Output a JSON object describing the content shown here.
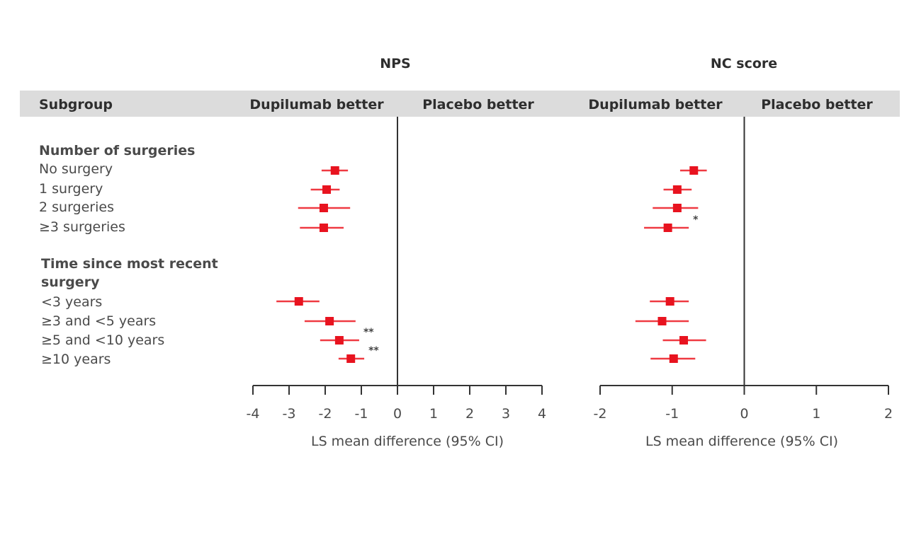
{
  "header": {
    "subgroup_label": "Subgroup"
  },
  "groups": [
    {
      "title": "Number of surgeries",
      "rows": [
        "No surgery",
        "1 surgery",
        "2 surgeries",
        "≥3 surgeries"
      ]
    },
    {
      "title": "Time since most recent surgery",
      "rows": [
        "<3 years",
        "≥3 and <5 years",
        "≥5 and <10 years",
        "≥10 years"
      ]
    }
  ],
  "colors": {
    "marker": "#e8131f",
    "ci": "#ef3a42",
    "axis": "#333333",
    "header_band": "#dcdcdc"
  },
  "chart_data": [
    {
      "type": "forest",
      "title": "NPS",
      "left_label": "Dupilumab better",
      "right_label": "Placebo better",
      "xlabel": "LS mean difference (95% CI)",
      "xlim": [
        -4,
        4
      ],
      "xticks": [
        -4,
        -3,
        -2,
        -1,
        0,
        1,
        2,
        3,
        4
      ],
      "rows": [
        {
          "subgroup": "No surgery",
          "estimate": -1.73,
          "lower": -2.1,
          "upper": -1.37,
          "sig": ""
        },
        {
          "subgroup": "1 surgery",
          "estimate": -1.96,
          "lower": -2.4,
          "upper": -1.6,
          "sig": ""
        },
        {
          "subgroup": "2 surgeries",
          "estimate": -2.04,
          "lower": -2.75,
          "upper": -1.31,
          "sig": ""
        },
        {
          "subgroup": "≥3 surgeries",
          "estimate": -2.04,
          "lower": -2.7,
          "upper": -1.49,
          "sig": ""
        },
        {
          "subgroup": "<3 years",
          "estimate": -2.73,
          "lower": -3.35,
          "upper": -2.16,
          "sig": ""
        },
        {
          "subgroup": "≥3 and <5 years",
          "estimate": -1.88,
          "lower": -2.57,
          "upper": -1.16,
          "sig": ""
        },
        {
          "subgroup": "≥5 and <10 years",
          "estimate": -1.61,
          "lower": -2.14,
          "upper": -1.06,
          "sig": "**"
        },
        {
          "subgroup": "≥10 years",
          "estimate": -1.29,
          "lower": -1.63,
          "upper": -0.92,
          "sig": "**"
        }
      ]
    },
    {
      "type": "forest",
      "title": "NC score",
      "left_label": "Dupilumab better",
      "right_label": "Placebo better",
      "xlabel": "LS mean difference (95% CI)",
      "xlim": [
        -2,
        2
      ],
      "xticks": [
        -2,
        -1,
        0,
        1,
        2
      ],
      "rows": [
        {
          "subgroup": "No surgery",
          "estimate": -0.7,
          "lower": -0.89,
          "upper": -0.52,
          "sig": ""
        },
        {
          "subgroup": "1 surgery",
          "estimate": -0.93,
          "lower": -1.12,
          "upper": -0.73,
          "sig": ""
        },
        {
          "subgroup": "2 surgeries",
          "estimate": -0.93,
          "lower": -1.27,
          "upper": -0.64,
          "sig": ""
        },
        {
          "subgroup": "≥3 surgeries",
          "estimate": -1.06,
          "lower": -1.39,
          "upper": -0.77,
          "sig": "*"
        },
        {
          "subgroup": "<3 years",
          "estimate": -1.03,
          "lower": -1.31,
          "upper": -0.77,
          "sig": ""
        },
        {
          "subgroup": "≥3 and <5 years",
          "estimate": -1.14,
          "lower": -1.51,
          "upper": -0.77,
          "sig": ""
        },
        {
          "subgroup": "≥5 and <10 years",
          "estimate": -0.84,
          "lower": -1.13,
          "upper": -0.53,
          "sig": ""
        },
        {
          "subgroup": "≥10 years",
          "estimate": -0.98,
          "lower": -1.3,
          "upper": -0.68,
          "sig": ""
        }
      ]
    }
  ]
}
